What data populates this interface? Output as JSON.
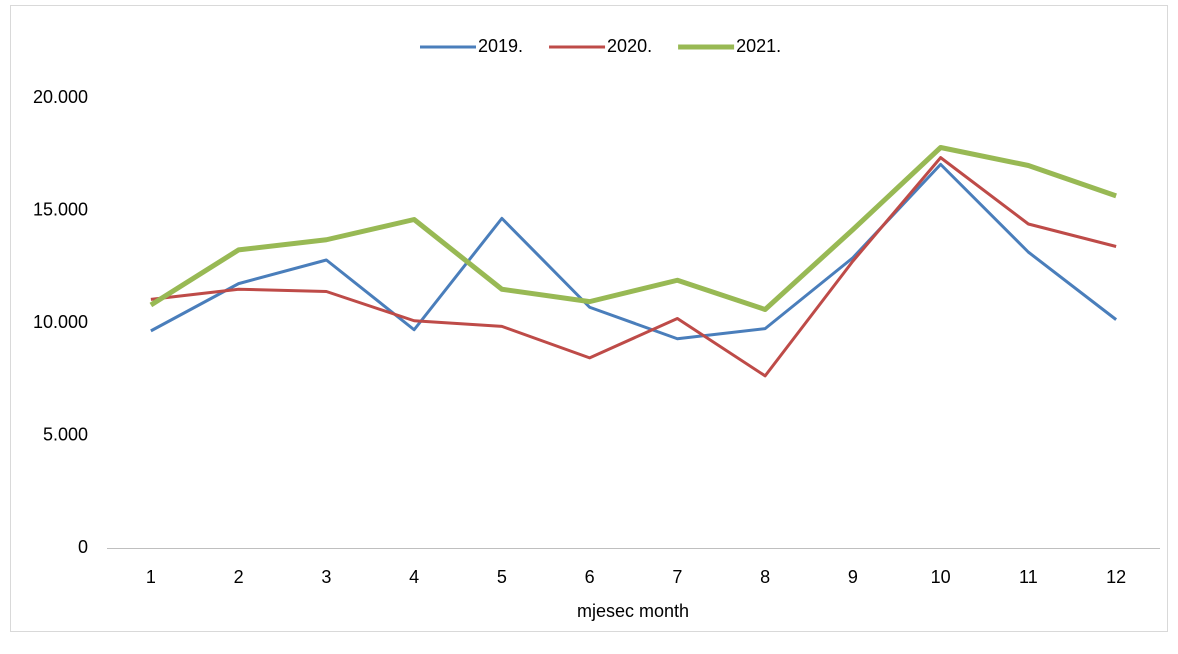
{
  "chart_data": {
    "type": "line",
    "x_label": "mjesec month",
    "categories": [
      "1",
      "2",
      "3",
      "4",
      "5",
      "6",
      "7",
      "8",
      "9",
      "10",
      "11",
      "12"
    ],
    "series": [
      {
        "name": "2019.",
        "color": "#4a7ebb",
        "values": [
          9650,
          11750,
          12800,
          9700,
          14650,
          10700,
          9300,
          9750,
          12900,
          17050,
          13150,
          10150
        ]
      },
      {
        "name": "2020.",
        "color": "#be4b48",
        "values": [
          11050,
          11500,
          11400,
          10100,
          9850,
          8450,
          10200,
          7650,
          12750,
          17350,
          14400,
          13400
        ]
      },
      {
        "name": "2021.",
        "color": "#98b954",
        "values": [
          10800,
          13250,
          13700,
          14600,
          11500,
          10950,
          11900,
          10600,
          14150,
          17800,
          17000,
          15650
        ]
      }
    ],
    "ylim": [
      0,
      20000
    ],
    "yticks": [
      0,
      {
        "value": 5000,
        "label": "5.000"
      },
      {
        "value": 10000,
        "label": "10.000"
      },
      {
        "value": 15000,
        "label": "15.000"
      },
      {
        "value": 20000,
        "label": "20.000"
      }
    ],
    "grid": false,
    "legend": "top"
  }
}
